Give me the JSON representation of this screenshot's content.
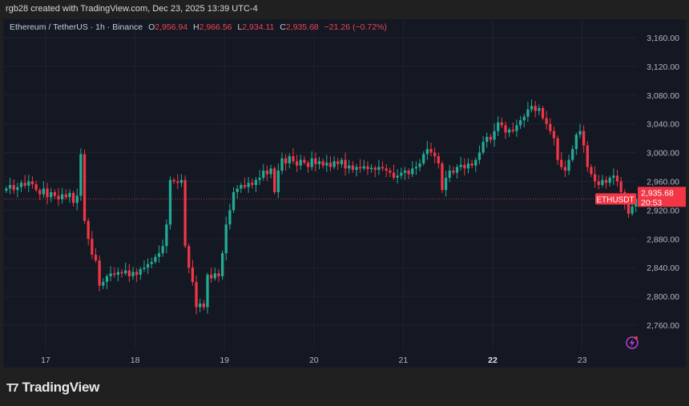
{
  "header": {
    "credit": "rgb28 created with TradingView.com, Dec 23, 2025 13:39 UTC-4"
  },
  "legend": {
    "symbol": "Ethereum / TetherUS · 1h · Binance",
    "o_label": "O",
    "o": "2,956.94",
    "h_label": "H",
    "h": "2,966.56",
    "l_label": "L",
    "l": "2,934.11",
    "c_label": "C",
    "c": "2,935.68",
    "change": "−21.26 (−0.72%)"
  },
  "price_tag": {
    "symbol": "ETHUSDT",
    "price": "2,935.68",
    "countdown": "20:53"
  },
  "footer": {
    "logo_text": "TradingView"
  },
  "colors": {
    "up": "#22ab94",
    "down": "#f23645",
    "background": "#141823",
    "grid": "#1f2330",
    "axis_text": "#b2b5be"
  },
  "chart_data": {
    "type": "candlestick",
    "title": "Ethereum / TetherUS · 1h · Binance",
    "ylim": [
      2730,
      3180
    ],
    "yticks": [
      "3,160.00",
      "3,120.00",
      "3,080.00",
      "3,040.00",
      "3,000.00",
      "2,960.00",
      "2,920.00",
      "2,880.00",
      "2,840.00",
      "2,800.00",
      "2,760.00"
    ],
    "ytick_values": [
      3160,
      3120,
      3080,
      3040,
      3000,
      2960,
      2920,
      2880,
      2840,
      2800,
      2760
    ],
    "xticks": [
      {
        "label": "17",
        "day": 17
      },
      {
        "label": "18",
        "day": 18
      },
      {
        "label": "19",
        "day": 19
      },
      {
        "label": "20",
        "day": 20
      },
      {
        "label": "21",
        "day": 21
      },
      {
        "label": "22",
        "day": 22,
        "bold": true
      },
      {
        "label": "23",
        "day": 23
      }
    ],
    "first_candle_day": 16.56,
    "interval_hours": 1,
    "grid": true,
    "last_price": 2935.68,
    "closes": [
      2950,
      2955,
      2948,
      2952,
      2958,
      2954,
      2960,
      2956,
      2948,
      2942,
      2950,
      2938,
      2945,
      2940,
      2935,
      2942,
      2938,
      2944,
      2930,
      2940,
      2998,
      2905,
      2880,
      2858,
      2850,
      2815,
      2820,
      2828,
      2832,
      2830,
      2834,
      2832,
      2836,
      2828,
      2834,
      2830,
      2838,
      2840,
      2845,
      2848,
      2855,
      2860,
      2870,
      2900,
      2962,
      2960,
      2958,
      2962,
      2870,
      2840,
      2820,
      2785,
      2790,
      2785,
      2830,
      2825,
      2832,
      2828,
      2860,
      2900,
      2920,
      2945,
      2950,
      2955,
      2952,
      2958,
      2955,
      2962,
      2965,
      2975,
      2970,
      2978,
      2945,
      2975,
      2992,
      2985,
      2995,
      2988,
      2982,
      2990,
      2986,
      2980,
      2992,
      2984,
      2988,
      2982,
      2986,
      2980,
      2988,
      2984,
      2990,
      2978,
      2982,
      2976,
      2980,
      2978,
      2981,
      2977,
      2979,
      2976,
      2980,
      2978,
      2975,
      2972,
      2965,
      2968,
      2972,
      2975,
      2970,
      2978,
      2980,
      2985,
      2998,
      3005,
      3000,
      2995,
      2985,
      2948,
      2965,
      2975,
      2972,
      2980,
      2983,
      2978,
      2985,
      2982,
      2990,
      3000,
      3015,
      3022,
      3018,
      3030,
      3042,
      3038,
      3028,
      3032,
      3030,
      3038,
      3045,
      3050,
      3060,
      3065,
      3058,
      3062,
      3048,
      3040,
      3030,
      3020,
      2990,
      2980,
      2975,
      2990,
      3005,
      3025,
      3030,
      3010,
      2980,
      2970,
      2960,
      2955,
      2962,
      2958,
      2965,
      2968,
      2960,
      2945,
      2930,
      2915,
      2925,
      2936
    ]
  }
}
